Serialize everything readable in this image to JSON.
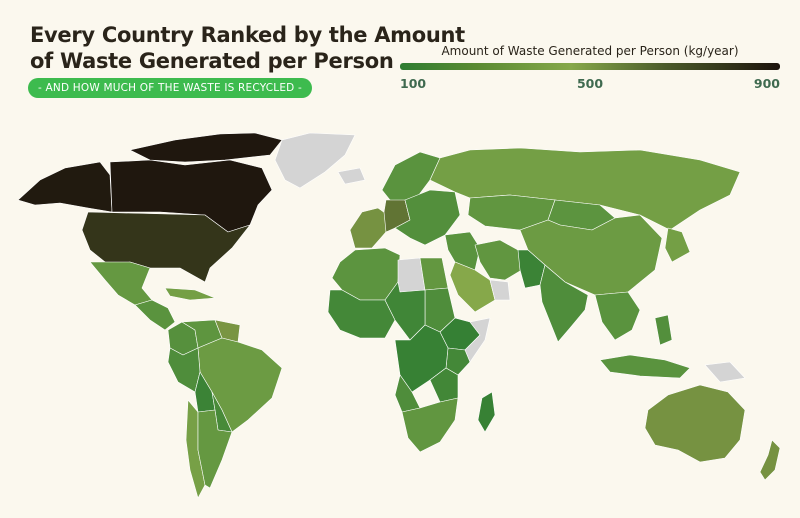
{
  "title": {
    "line1": "Every Country Ranked by the Amount",
    "line2": "of Waste Generated per Person"
  },
  "subtitle": "- AND HOW MUCH OF THE WASTE IS RECYCLED -",
  "legend": {
    "title": "Amount of Waste Generated per Person (kg/year)",
    "min_label": "100",
    "mid_label": "500",
    "max_label": "900"
  },
  "colors": {
    "background": "#fbf8ee",
    "ocean": "#fbf8ee",
    "no_data": "#d4d4d4",
    "low": "#2e7d32",
    "mid": "#86a84a",
    "high": "#1c130c",
    "subtitle_bg": "#3dbb4e"
  },
  "regions": [
    {
      "name": "Alaska",
      "level": 880
    },
    {
      "name": "Canada",
      "level": 890
    },
    {
      "name": "Canadian Arctic Islands",
      "level": 890
    },
    {
      "name": "Greenland",
      "level": null
    },
    {
      "name": "United States",
      "level": 810
    },
    {
      "name": "Mexico",
      "level": 350
    },
    {
      "name": "Central America",
      "level": 300
    },
    {
      "name": "Caribbean",
      "level": 420
    },
    {
      "name": "Colombia",
      "level": 280
    },
    {
      "name": "Venezuela",
      "level": 320
    },
    {
      "name": "Guyana",
      "level": 550
    },
    {
      "name": "Brazil",
      "level": 380
    },
    {
      "name": "Peru",
      "level": 250
    },
    {
      "name": "Bolivia",
      "level": 160
    },
    {
      "name": "Paraguay",
      "level": 220
    },
    {
      "name": "Chile",
      "level": 430
    },
    {
      "name": "Argentina",
      "level": 350
    },
    {
      "name": "Iceland",
      "level": null
    },
    {
      "name": "Scandinavia",
      "level": 300
    },
    {
      "name": "Western Europe",
      "level": 560
    },
    {
      "name": "Germany",
      "level": 640
    },
    {
      "name": "Eastern Europe",
      "level": 270
    },
    {
      "name": "Russia",
      "level": 420
    },
    {
      "name": "Kazakhstan",
      "level": 330
    },
    {
      "name": "Mongolia",
      "level": 310
    },
    {
      "name": "China",
      "level": 380
    },
    {
      "name": "Japan",
      "level": 420
    },
    {
      "name": "Middle East",
      "level": 300
    },
    {
      "name": "Saudi Arabia",
      "level": 500
    },
    {
      "name": "Oman",
      "level": null
    },
    {
      "name": "Iran",
      "level": 330
    },
    {
      "name": "Afghanistan",
      "level": 160
    },
    {
      "name": "India",
      "level": 250
    },
    {
      "name": "Southeast Asia",
      "level": 300
    },
    {
      "name": "Indonesia",
      "level": 300
    },
    {
      "name": "Philippines",
      "level": 270
    },
    {
      "name": "Papua New Guinea",
      "level": null
    },
    {
      "name": "North Africa",
      "level": 310
    },
    {
      "name": "Libya",
      "level": null
    },
    {
      "name": "Egypt",
      "level": 340
    },
    {
      "name": "Sudan",
      "level": 250
    },
    {
      "name": "West Africa",
      "level": 200
    },
    {
      "name": "Central Africa",
      "level": 180
    },
    {
      "name": "Ethiopia",
      "level": 130
    },
    {
      "name": "Somalia",
      "level": null
    },
    {
      "name": "Kenya",
      "level": 200
    },
    {
      "name": "DR Congo",
      "level": 140
    },
    {
      "name": "Angola",
      "level": 250
    },
    {
      "name": "Tanzania",
      "level": 190
    },
    {
      "name": "Southern Africa",
      "level": 330
    },
    {
      "name": "Madagascar",
      "level": 140
    },
    {
      "name": "Australia",
      "level": 560
    },
    {
      "name": "New Zealand",
      "level": 560
    }
  ]
}
